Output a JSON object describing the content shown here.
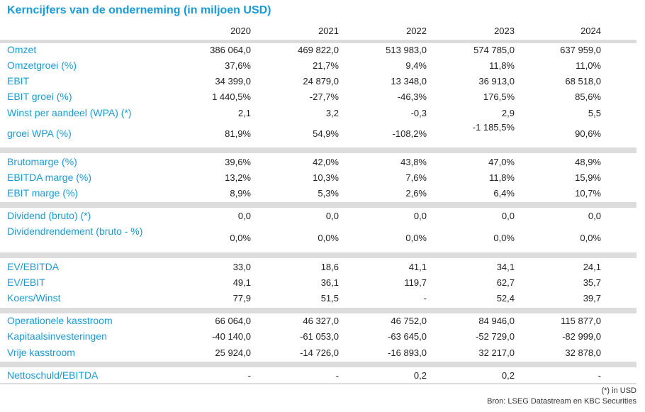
{
  "title": "Kerncijfers van de onderneming (in miljoen USD)",
  "years": [
    "2020",
    "2021",
    "2022",
    "2023",
    "2024"
  ],
  "groups": [
    {
      "rows": [
        {
          "label": "Omzet",
          "values": [
            "386 064,0",
            "469 822,0",
            "513 983,0",
            "574 785,0",
            "637 959,0"
          ]
        },
        {
          "label": "Omzetgroei (%)",
          "values": [
            "37,6%",
            "21,7%",
            "9,4%",
            "11,8%",
            "11,0%"
          ]
        },
        {
          "label": "EBIT",
          "values": [
            "34 399,0",
            "24 879,0",
            "13 348,0",
            "36 913,0",
            "68 518,0"
          ]
        },
        {
          "label": "EBIT groei (%)",
          "values": [
            "1 440,5%",
            "-27,7%",
            "-46,3%",
            "176,5%",
            "85,6%"
          ]
        },
        {
          "label": "Winst per aandeel (WPA) (*)",
          "values": [
            "2,1",
            "3,2",
            "-0,3",
            "2,9",
            "5,5"
          ]
        },
        {
          "label": "groei WPA (%)",
          "values": [
            "81,9%",
            "54,9%",
            "-108,2%",
            "-1 185,5%",
            "90,6%"
          ]
        }
      ]
    },
    {
      "rows": [
        {
          "label": "Brutomarge (%)",
          "values": [
            "39,6%",
            "42,0%",
            "43,8%",
            "47,0%",
            "48,9%"
          ]
        },
        {
          "label": "EBITDA marge (%)",
          "values": [
            "13,2%",
            "10,3%",
            "7,6%",
            "11,8%",
            "15,9%"
          ]
        },
        {
          "label": "EBIT marge (%)",
          "values": [
            "8,9%",
            "5,3%",
            "2,6%",
            "6,4%",
            "10,7%"
          ]
        }
      ]
    },
    {
      "rows": [
        {
          "label": "Dividend (bruto) (*)",
          "values": [
            "0,0",
            "0,0",
            "0,0",
            "0,0",
            "0,0"
          ]
        },
        {
          "label": "Dividendrendement (bruto - %)",
          "values": [
            "0,0%",
            "0,0%",
            "0,0%",
            "0,0%",
            "0,0%"
          ]
        }
      ]
    },
    {
      "rows": [
        {
          "label": "EV/EBITDA",
          "values": [
            "33,0",
            "18,6",
            "41,1",
            "34,1",
            "24,1"
          ]
        },
        {
          "label": "EV/EBIT",
          "values": [
            "49,1",
            "36,1",
            "119,7",
            "62,7",
            "35,7"
          ]
        },
        {
          "label": "Koers/Winst",
          "values": [
            "77,9",
            "51,5",
            "-",
            "52,4",
            "39,7"
          ]
        }
      ]
    },
    {
      "rows": [
        {
          "label": "Operationele kasstroom",
          "values": [
            "66 064,0",
            "46 327,0",
            "46 752,0",
            "84 946,0",
            "115 877,0"
          ]
        },
        {
          "label": "Kapitaalsinvesteringen",
          "values": [
            "-40 140,0",
            "-61 053,0",
            "-63 645,0",
            "-52 729,0",
            "-82 999,0"
          ]
        },
        {
          "label": "Vrije kasstroom",
          "values": [
            "25 924,0",
            "-14 726,0",
            "-16 893,0",
            "32 217,0",
            "32 878,0"
          ]
        }
      ]
    },
    {
      "rows": [
        {
          "label": "Nettoschuld/EBITDA",
          "values": [
            "-",
            "-",
            "0,2",
            "0,2",
            "-"
          ]
        }
      ]
    }
  ],
  "footnotes": {
    "currency_note": "(*) in USD",
    "source": "Bron: LSEG Datastream en KBC Securities"
  },
  "colors": {
    "label": "#1a9bd7",
    "separator": "#dcdcdc"
  }
}
